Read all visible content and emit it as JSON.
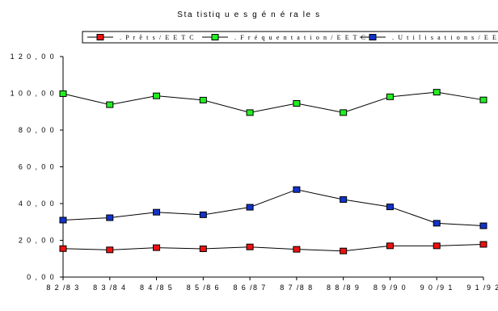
{
  "chart_data": {
    "type": "line",
    "title": "Statistiques générales",
    "title_display": "Sta tistiq u e s g é n é ra le s",
    "categories": [
      "82/83",
      "83/84",
      "84/85",
      "85/86",
      "86/87",
      "87/88",
      "88/89",
      "89/90",
      "90/91",
      "91/92"
    ],
    "category_labels": [
      "8 2 /8 3",
      "8 3 /8 4",
      "8 4 /8 5",
      "8 5 /8 6",
      "8 6 /8 7",
      "8 7 /8 8",
      "8 8 /8 9",
      "8 9 /9 0",
      "9 0 /9 1",
      "9 1 /9 2"
    ],
    "ylim": [
      0,
      120
    ],
    "yticks": [
      0,
      20,
      40,
      60,
      80,
      100,
      120
    ],
    "ytick_labels": [
      "0 , 0 0",
      "2 0 , 0 0",
      "4 0 , 0 0",
      "6 0 , 0 0",
      "8 0 , 0 0",
      "1 0 0 , 0 0",
      "1 2 0 , 0 0"
    ],
    "grid": false,
    "legend_position": "top",
    "series": [
      {
        "name": ".Prêts/EETC",
        "legend_label": ". P r ê t s / E E T C",
        "color": "#ee1111",
        "values": [
          15.5,
          14.8,
          16.0,
          15.4,
          16.4,
          15.1,
          14.2,
          17.0,
          17.0,
          17.8
        ]
      },
      {
        "name": ".Fréquentation/EETC",
        "legend_label": ". F r é q u e n t a t i o n / E E T C",
        "color": "#22ee22",
        "values": [
          99.8,
          93.8,
          98.6,
          96.3,
          89.5,
          94.5,
          89.5,
          98.1,
          100.6,
          96.4
        ]
      },
      {
        "name": ".Utilisations/EETC",
        "legend_label": ". U t i l i s a t i o n s / E E T C",
        "color": "#1133cc",
        "values": [
          31.0,
          32.3,
          35.3,
          33.9,
          38.0,
          47.6,
          42.2,
          38.2,
          29.3,
          27.9
        ]
      }
    ]
  }
}
